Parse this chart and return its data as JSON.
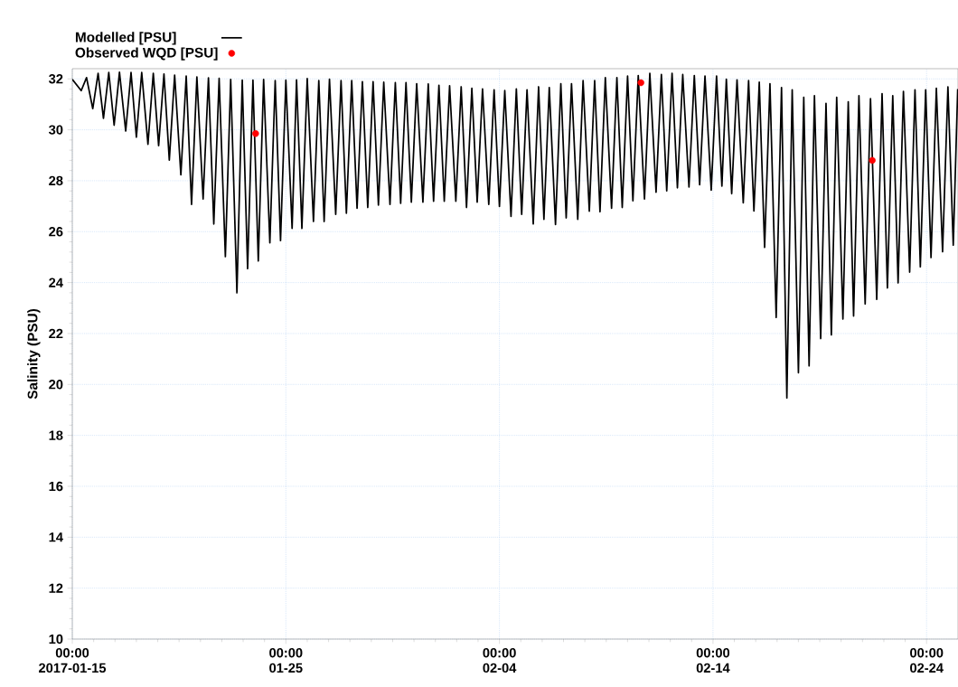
{
  "chart_data": {
    "type": "line",
    "ylabel": "Salinity (PSU)",
    "xlim": [
      "2017-01-15T00:00",
      "2017-02-25T11:20"
    ],
    "ylim": [
      10,
      32.4
    ],
    "xticks": [
      {
        "value": "2017-01-15T00:00",
        "label": "00:00 2017-01-15"
      },
      {
        "value": "2017-01-25T00:00",
        "label": "00:00 01-25"
      },
      {
        "value": "2017-02-04T00:00",
        "label": "00:00 02-04"
      },
      {
        "value": "2017-02-14T00:00",
        "label": "00:00 02-14"
      },
      {
        "value": "2017-02-24T00:00",
        "label": "00:00 02-24"
      }
    ],
    "yticks": [
      10,
      12,
      14,
      16,
      18,
      20,
      22,
      24,
      26,
      28,
      30,
      32
    ],
    "grid": true,
    "legend": "top left",
    "series": [
      {
        "name": "Modelled [PSU]",
        "color": "#000000",
        "marker": "none",
        "x": [
          "2017-01-15T00:00",
          "2017-01-15T10:00",
          "2017-01-15T16:00",
          "2017-01-15T23:00",
          "2017-01-16T05:00",
          "2017-01-16T11:00",
          "2017-01-16T17:00",
          "2017-01-16T23:00",
          "2017-01-17T05:00",
          "2017-01-17T12:00",
          "2017-01-17T18:00",
          "2017-01-18T00:00",
          "2017-01-18T06:00",
          "2017-01-18T13:00",
          "2017-01-18T19:00",
          "2017-01-19T01:00",
          "2017-01-19T07:00",
          "2017-01-19T13:00",
          "2017-01-19T19:00",
          "2017-01-20T02:00",
          "2017-01-20T08:00",
          "2017-01-20T14:00",
          "2017-01-20T20:00",
          "2017-01-21T03:00",
          "2017-01-21T09:00",
          "2017-01-21T15:00",
          "2017-01-21T21:00",
          "2017-01-22T04:00",
          "2017-01-22T10:00",
          "2017-01-22T17:00",
          "2017-01-22T23:00",
          "2017-01-23T05:00",
          "2017-01-23T11:00",
          "2017-01-23T17:00",
          "2017-01-23T23:00",
          "2017-01-24T06:00",
          "2017-01-24T12:00",
          "2017-01-24T18:00",
          "2017-01-25T00:00",
          "2017-01-25T07:00",
          "2017-01-25T12:00",
          "2017-01-25T18:00",
          "2017-01-26T00:00",
          "2017-01-26T07:00",
          "2017-01-26T13:00",
          "2017-01-26T19:00",
          "2017-01-27T01:00",
          "2017-01-27T08:00",
          "2017-01-27T14:00",
          "2017-01-27T20:00",
          "2017-01-28T02:00",
          "2017-01-28T08:00",
          "2017-01-28T14:00",
          "2017-01-28T20:00",
          "2017-01-29T02:00",
          "2017-01-29T08:00",
          "2017-01-29T14:00",
          "2017-01-29T21:00",
          "2017-01-30T03:00",
          "2017-01-30T09:00",
          "2017-01-30T15:00",
          "2017-01-30T21:00",
          "2017-01-31T03:00",
          "2017-01-31T10:00",
          "2017-01-31T16:00",
          "2017-01-31T22:00",
          "2017-02-01T04:00",
          "2017-02-01T10:00",
          "2017-02-01T16:00",
          "2017-02-01T23:00",
          "2017-02-02T05:00",
          "2017-02-02T11:00",
          "2017-02-02T17:00",
          "2017-02-02T23:00",
          "2017-02-03T05:00",
          "2017-02-03T12:00",
          "2017-02-03T18:00",
          "2017-02-04T00:00",
          "2017-02-04T06:00",
          "2017-02-04T13:00",
          "2017-02-04T19:00",
          "2017-02-05T01:00",
          "2017-02-05T07:00",
          "2017-02-05T14:00",
          "2017-02-05T20:00",
          "2017-02-06T02:00",
          "2017-02-06T08:00",
          "2017-02-06T15:00",
          "2017-02-06T21:00",
          "2017-02-07T03:00",
          "2017-02-07T09:00",
          "2017-02-07T16:00",
          "2017-02-07T22:00",
          "2017-02-08T05:00",
          "2017-02-08T11:00",
          "2017-02-08T17:00",
          "2017-02-08T23:00",
          "2017-02-09T06:00",
          "2017-02-09T12:00",
          "2017-02-09T18:00",
          "2017-02-10T00:00",
          "2017-02-10T06:00",
          "2017-02-10T12:00",
          "2017-02-10T19:00",
          "2017-02-11T01:00",
          "2017-02-11T08:00",
          "2017-02-11T14:00",
          "2017-02-11T20:00",
          "2017-02-12T02:00",
          "2017-02-12T08:00",
          "2017-02-12T14:00",
          "2017-02-12T21:00",
          "2017-02-13T03:00",
          "2017-02-13T09:00",
          "2017-02-13T15:00",
          "2017-02-13T22:00",
          "2017-02-14T04:00",
          "2017-02-14T10:00",
          "2017-02-14T15:00",
          "2017-02-14T21:00",
          "2017-02-15T03:00",
          "2017-02-15T10:00",
          "2017-02-15T16:00",
          "2017-02-15T22:00",
          "2017-02-16T04:00",
          "2017-02-16T10:00",
          "2017-02-16T16:00",
          "2017-02-16T23:00",
          "2017-02-17T05:00",
          "2017-02-17T11:00",
          "2017-02-17T17:00",
          "2017-02-18T00:00",
          "2017-02-18T06:00",
          "2017-02-18T12:00",
          "2017-02-18T18:00",
          "2017-02-19T01:00",
          "2017-02-19T07:00",
          "2017-02-19T13:00",
          "2017-02-19T19:00",
          "2017-02-20T02:00",
          "2017-02-20T08:00",
          "2017-02-20T14:00",
          "2017-02-20T20:00",
          "2017-02-21T03:00",
          "2017-02-21T09:00",
          "2017-02-21T16:00",
          "2017-02-21T22:00",
          "2017-02-22T04:00",
          "2017-02-22T10:00",
          "2017-02-22T16:00",
          "2017-02-22T22:00",
          "2017-02-23T05:00",
          "2017-02-23T11:00",
          "2017-02-23T17:00",
          "2017-02-23T23:00",
          "2017-02-24T05:00",
          "2017-02-24T11:00",
          "2017-02-24T18:00",
          "2017-02-25T00:00",
          "2017-02-25T06:00",
          "2017-02-25T11:00"
        ],
        "values": [
          31.98,
          31.54,
          32.05,
          30.83,
          32.22,
          30.45,
          32.25,
          30.18,
          32.26,
          29.95,
          32.25,
          29.71,
          32.25,
          29.43,
          32.22,
          29.38,
          32.19,
          28.81,
          32.15,
          28.23,
          32.11,
          27.07,
          32.08,
          27.28,
          32.04,
          26.3,
          32.02,
          25.02,
          31.98,
          23.6,
          31.95,
          24.55,
          31.95,
          24.85,
          31.98,
          25.56,
          31.93,
          25.65,
          31.95,
          26.13,
          31.96,
          26.13,
          32.01,
          26.4,
          31.93,
          26.4,
          31.99,
          26.68,
          31.93,
          26.72,
          31.93,
          26.92,
          31.89,
          26.95,
          31.89,
          27.04,
          31.87,
          27.07,
          31.85,
          27.11,
          31.85,
          27.16,
          31.81,
          27.16,
          31.8,
          27.19,
          31.75,
          27.19,
          31.73,
          27.19,
          31.69,
          26.95,
          31.63,
          27.16,
          31.61,
          27.07,
          31.57,
          26.99,
          31.54,
          26.6,
          31.61,
          26.68,
          31.57,
          26.3,
          31.69,
          26.48,
          31.66,
          26.28,
          31.81,
          26.54,
          31.81,
          26.48,
          31.93,
          26.8,
          31.93,
          26.78,
          32.05,
          26.92,
          32.05,
          26.95,
          32.11,
          27.21,
          32.13,
          27.28,
          32.22,
          27.55,
          32.17,
          27.6,
          32.22,
          27.72,
          32.17,
          27.75,
          32.13,
          27.84,
          32.11,
          27.63,
          32.11,
          27.79,
          31.99,
          27.49,
          31.96,
          27.13,
          31.93,
          26.81,
          31.87,
          25.38,
          31.81,
          22.63,
          31.66,
          19.47,
          31.57,
          20.46,
          31.28,
          20.73,
          31.34,
          21.8,
          31.04,
          21.95,
          31.28,
          22.57,
          31.1,
          22.69,
          31.34,
          23.16,
          31.22,
          23.34,
          31.42,
          23.79,
          31.34,
          23.99,
          31.51,
          24.41,
          31.57,
          24.62,
          31.57,
          24.98,
          31.63,
          25.21,
          31.69,
          25.47,
          31.6
        ]
      },
      {
        "name": "Observed WQD [PSU]",
        "type": "scatter",
        "color": "#ff0000",
        "marker": "circle",
        "x": [
          "2017-01-23T14:00",
          "2017-02-10T15:00",
          "2017-02-21T11:00"
        ],
        "values": [
          29.85,
          31.85,
          28.8
        ]
      }
    ]
  }
}
